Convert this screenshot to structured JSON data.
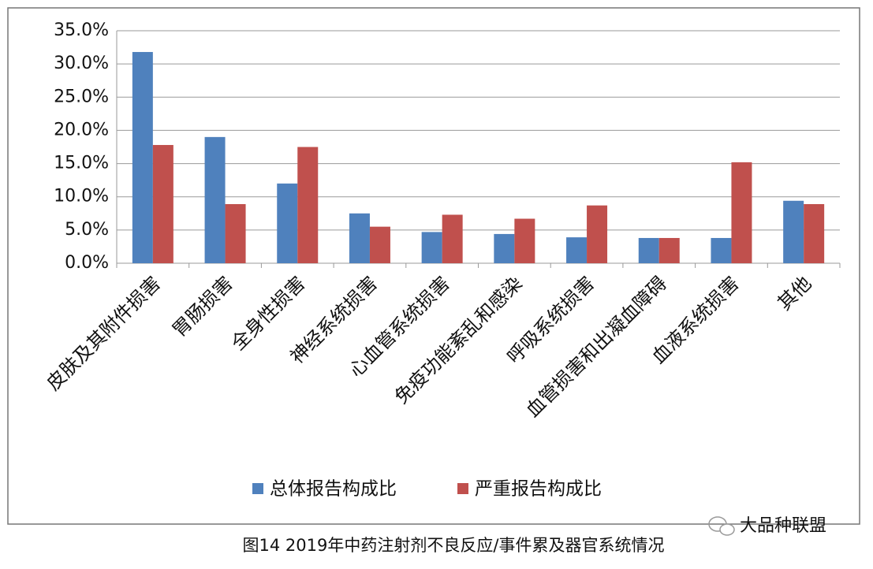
{
  "chart_data": {
    "type": "bar",
    "categories": [
      "皮肤及其附件损害",
      "胃肠损害",
      "全身性损害",
      "神经系统损害",
      "心血管系统损害",
      "免疫功能紊乱和感染",
      "呼吸系统损害",
      "血管损害和出凝血障碍",
      "血液系统损害",
      "其他"
    ],
    "series": [
      {
        "name": "总体报告构成比",
        "color": "#4f81bd",
        "values": [
          31.8,
          19.0,
          12.0,
          7.5,
          4.7,
          4.4,
          3.9,
          3.8,
          3.8,
          9.4
        ]
      },
      {
        "name": "严重报告构成比",
        "color": "#c0504d",
        "values": [
          17.8,
          8.9,
          17.5,
          5.5,
          7.3,
          6.7,
          8.7,
          3.8,
          15.2,
          8.9
        ]
      }
    ],
    "ylim": [
      0,
      35
    ],
    "yticks": [
      {
        "value": 0,
        "label": "0.0%"
      },
      {
        "value": 5,
        "label": "5.0%"
      },
      {
        "value": 10,
        "label": "10.0%"
      },
      {
        "value": 15,
        "label": "15.0%"
      },
      {
        "value": 20,
        "label": "20.0%"
      },
      {
        "value": 25,
        "label": "25.0%"
      },
      {
        "value": 30,
        "label": "30.0%"
      },
      {
        "value": 35,
        "label": "35.0%"
      }
    ],
    "grid": true,
    "legend": "bottom",
    "caption": "图14 2019年中药注射剂不良反应/事件累及器官系统情况",
    "watermark": "大品种联盟"
  }
}
